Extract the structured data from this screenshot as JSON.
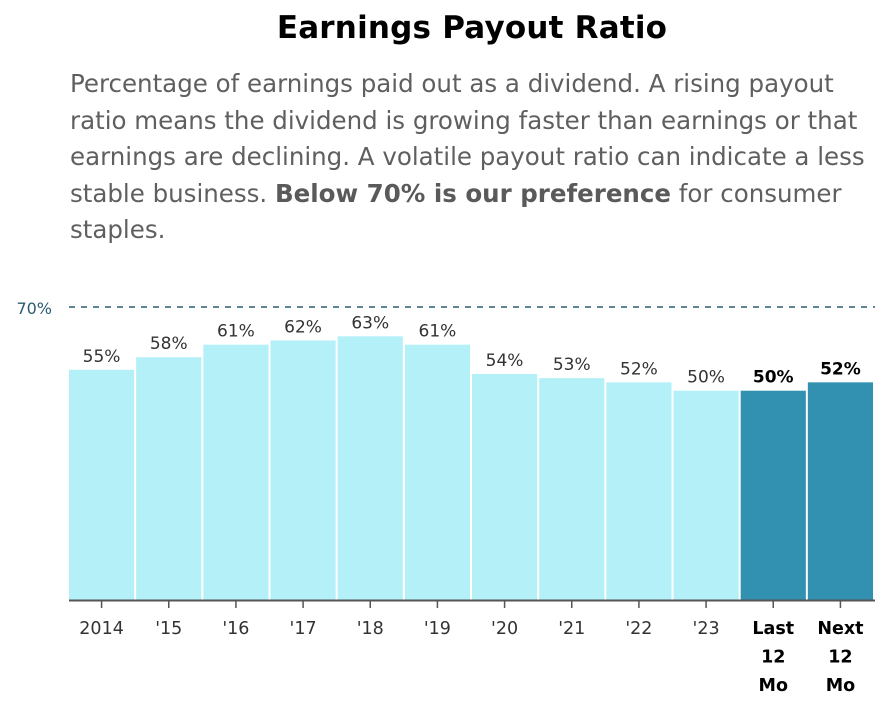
{
  "title": "Earnings Payout Ratio",
  "description": {
    "text_before": "Percentage of earnings paid out as a dividend. A rising payout ratio means the dividend is growing faster than earnings or that earnings are declining. A volatile payout ratio can indicate a less stable business. ",
    "bold": "Below 70% is our preference",
    "text_after": " for consumer staples."
  },
  "colors": {
    "past_bar": "#b3f0f8",
    "highlight_bar": "#3290b0",
    "reference_line": "#2b5c70",
    "label": "#333333",
    "axis": "#555555"
  },
  "chart_data": {
    "type": "bar",
    "categories": [
      "2014",
      "'15",
      "'16",
      "'17",
      "'18",
      "'19",
      "'20",
      "'21",
      "'22",
      "'23",
      "Last 12 Mo",
      "Next 12 Mo"
    ],
    "category_lines": [
      [
        "2014"
      ],
      [
        "'15"
      ],
      [
        "'16"
      ],
      [
        "'17"
      ],
      [
        "'18"
      ],
      [
        "'19"
      ],
      [
        "'20"
      ],
      [
        "'21"
      ],
      [
        "'22"
      ],
      [
        "'23"
      ],
      [
        "Last",
        "12",
        "Mo"
      ],
      [
        "Next",
        "12",
        "Mo"
      ]
    ],
    "values": [
      55,
      58,
      61,
      62,
      63,
      61,
      54,
      53,
      52,
      50,
      50,
      52
    ],
    "data_labels": [
      "55%",
      "58%",
      "61%",
      "62%",
      "63%",
      "61%",
      "54%",
      "53%",
      "52%",
      "50%",
      "50%",
      "52%"
    ],
    "highlighted": [
      false,
      false,
      false,
      false,
      false,
      false,
      false,
      false,
      false,
      false,
      true,
      true
    ],
    "reference_line": {
      "value": 70,
      "label": "70%"
    },
    "ylim": [
      0,
      70
    ],
    "grid": false,
    "legend": "none"
  }
}
